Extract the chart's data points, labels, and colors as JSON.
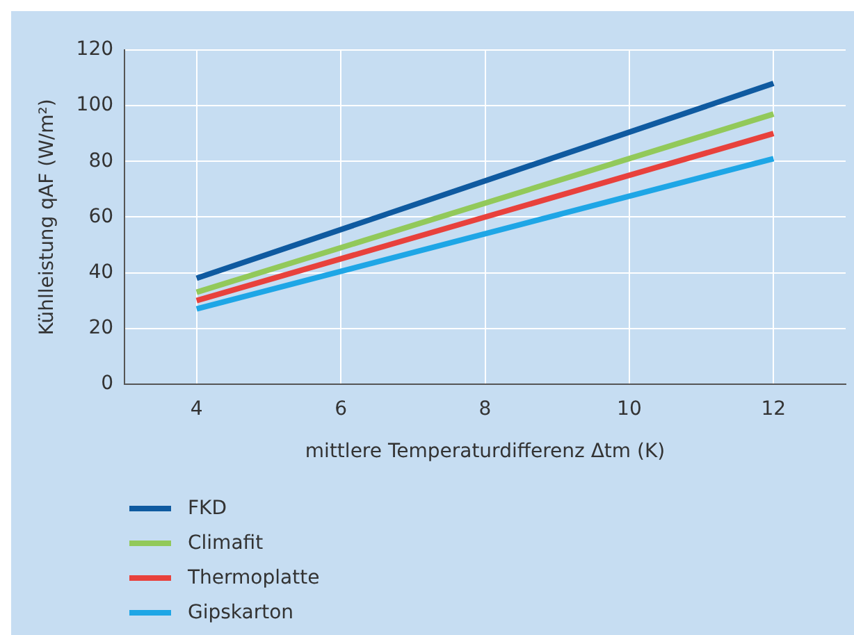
{
  "chart_data": {
    "type": "line",
    "xlabel": "mittlere Temperaturdifferenz Δtm (K)",
    "ylabel": "Kühlleistung qAF (W/m²)",
    "xlim": [
      3,
      13
    ],
    "xticks": [
      4,
      6,
      8,
      10,
      12
    ],
    "ylim": [
      0,
      120
    ],
    "yticks": [
      0,
      20,
      40,
      60,
      80,
      100,
      120
    ],
    "grid": true,
    "legend": "bottom left",
    "marker": "none",
    "line_style": "solid",
    "x": [
      4,
      12
    ],
    "series": [
      {
        "name": "FKD",
        "color": "#0f5aa0",
        "values": [
          38,
          108
        ]
      },
      {
        "name": "Climafit",
        "color": "#92c95a",
        "values": [
          33,
          97
        ]
      },
      {
        "name": "Thermoplatte",
        "color": "#e8413c",
        "values": [
          30,
          90
        ]
      },
      {
        "name": "Gipskarton",
        "color": "#1ea6e6",
        "values": [
          27,
          81
        ]
      }
    ]
  }
}
